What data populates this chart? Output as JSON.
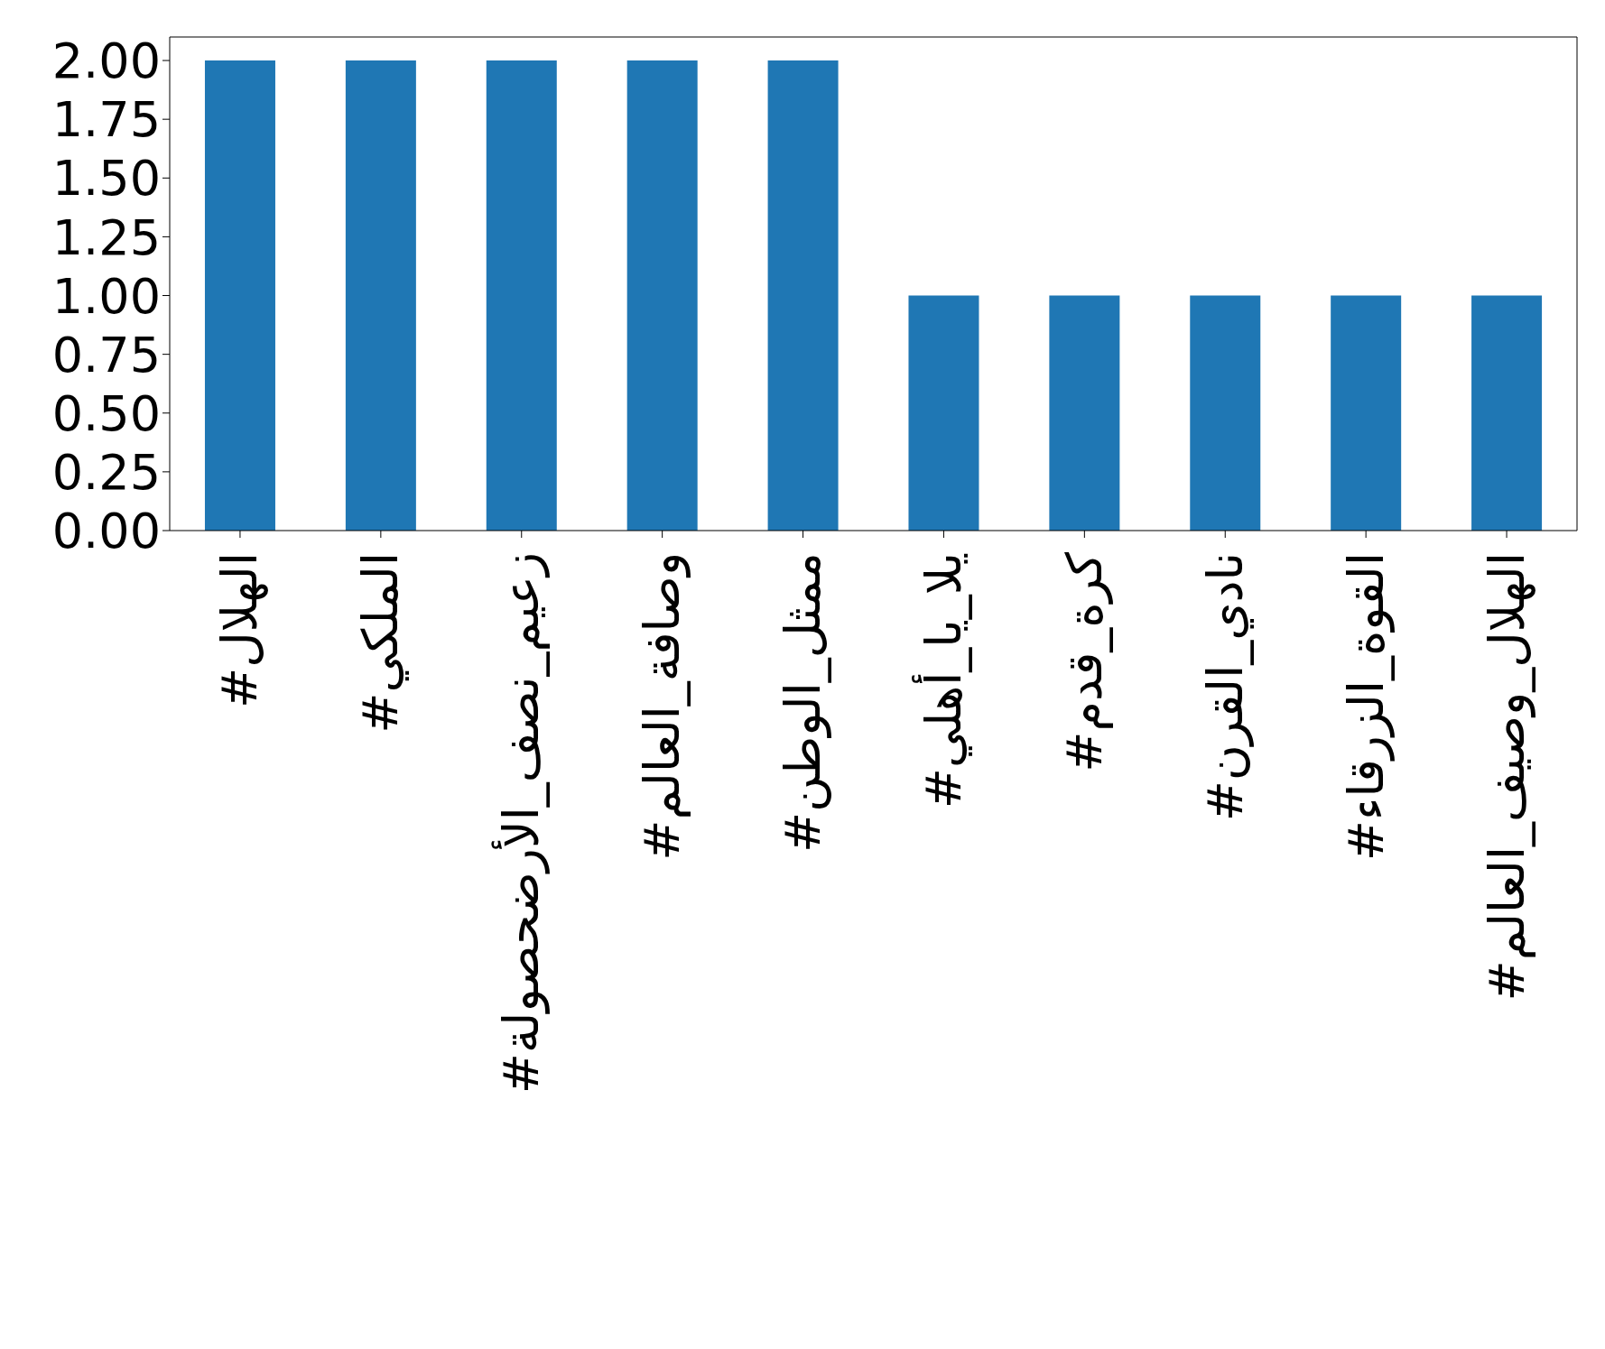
{
  "chart_data": {
    "type": "bar",
    "categories": [
      "#الهلال",
      "#الملكي",
      "#زعيم_نصف_الأرضحصولة",
      "#وصافة_العالم",
      "#ممثل_الوطن",
      "#يلا_يا_أهلي",
      "#كرة_قدم",
      "#نادي_القرن",
      "#القوة_الزرقاء",
      "#الهلال_وصيف_العالم"
    ],
    "values": [
      2,
      2,
      2,
      2,
      2,
      1,
      1,
      1,
      1,
      1
    ],
    "color": "#1f77b4",
    "ylim": [
      0,
      2.1
    ],
    "yticks": [
      {
        "value": 0,
        "label": "0.00"
      },
      0.25,
      {
        "value": 0.5,
        "label": "0.50"
      },
      0.75,
      {
        "value": 1,
        "label": "1.00"
      },
      1.25,
      {
        "value": 1.5,
        "label": "1.50"
      },
      1.75,
      {
        "value": 2,
        "label": "2.00"
      }
    ],
    "grid": false,
    "legend": false
  }
}
